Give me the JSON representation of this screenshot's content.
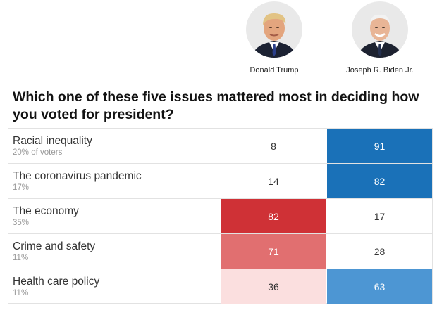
{
  "candidates": [
    {
      "name": "Donald Trump",
      "icon": "trump-portrait-icon"
    },
    {
      "name": "Joseph R. Biden Jr.",
      "icon": "biden-portrait-icon"
    }
  ],
  "question": "Which one of these five issues mattered most in deciding how you voted for president?",
  "chart_data": {
    "type": "table",
    "title": "Which one of these five issues mattered most in deciding how you voted for president?",
    "columns": [
      "Donald Trump",
      "Joseph R. Biden Jr."
    ],
    "rows": [
      {
        "label": "Racial inequality",
        "share": "20% of voters",
        "values": [
          8,
          91
        ]
      },
      {
        "label": "The coronavirus pandemic",
        "share": "17%",
        "values": [
          14,
          82
        ]
      },
      {
        "label": "The economy",
        "share": "35%",
        "values": [
          82,
          17
        ]
      },
      {
        "label": "Crime and safety",
        "share": "11%",
        "values": [
          71,
          28
        ]
      },
      {
        "label": "Health care policy",
        "share": "11%",
        "values": [
          36,
          63
        ]
      }
    ],
    "colors": {
      "trump_strong": "#cf3136",
      "trump_mid": "#e16f70",
      "trump_light": "#fbdfdf",
      "biden_strong": "#1a71b8",
      "biden_mid": "#4d96d3",
      "none": "#ffffff"
    }
  }
}
